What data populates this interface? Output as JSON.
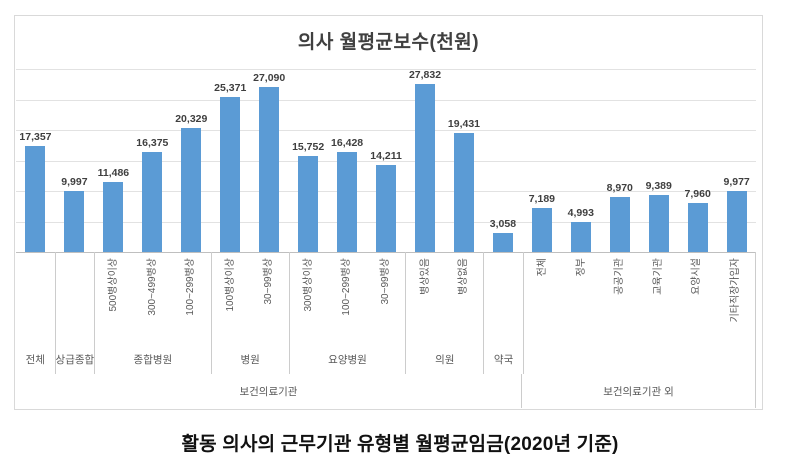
{
  "chart": {
    "title": "의사 월평균보수(천원)",
    "bar_color": "#5b9bd5",
    "gridline_color": "#e2e2e2",
    "axis_line_color": "#bfbfbf",
    "value_label_color": "#3f3f3f",
    "axis_label_color": "#595959"
  },
  "caption": "활동 의사의 근무기관 유형별 월평균임금(2020년 기준)",
  "chart_data": {
    "type": "bar",
    "title": "의사 월평균보수(천원)",
    "ylabel": "",
    "xlabel": "",
    "ylim": [
      0,
      30000
    ],
    "gridline_interval": 5000,
    "grid": true,
    "y_axis_labels_visible": false,
    "series_color": "#5b9bd5",
    "groups": [
      {
        "group": "전체",
        "supergroup": "보건의료기관",
        "items": [
          {
            "label": "",
            "value": 17357
          }
        ]
      },
      {
        "group": "상급종합",
        "supergroup": "보건의료기관",
        "items": [
          {
            "label": "",
            "value": 9997
          }
        ]
      },
      {
        "group": "종합병원",
        "supergroup": "보건의료기관",
        "items": [
          {
            "label": "500병상이상",
            "value": 11486
          },
          {
            "label": "300~499병상",
            "value": 16375
          },
          {
            "label": "100~299병상",
            "value": 20329
          }
        ]
      },
      {
        "group": "병원",
        "supergroup": "보건의료기관",
        "items": [
          {
            "label": "100병상이상",
            "value": 25371
          },
          {
            "label": "30~99병상",
            "value": 27090
          }
        ]
      },
      {
        "group": "요양병원",
        "supergroup": "보건의료기관",
        "items": [
          {
            "label": "300병상이상",
            "value": 15752
          },
          {
            "label": "100~299병상",
            "value": 16428
          },
          {
            "label": "30~99병상",
            "value": 14211
          }
        ]
      },
      {
        "group": "의원",
        "supergroup": "보건의료기관",
        "items": [
          {
            "label": "병상있음",
            "value": 27832
          },
          {
            "label": "병상없음",
            "value": 19431
          }
        ]
      },
      {
        "group": "약국",
        "supergroup": "보건의료기관",
        "items": [
          {
            "label": "",
            "value": 3058
          }
        ]
      },
      {
        "group": "",
        "supergroup": "보건의료기관 외",
        "items": [
          {
            "label": "전체",
            "value": 7189
          },
          {
            "label": "정부",
            "value": 4993
          },
          {
            "label": "공공기관",
            "value": 8970
          },
          {
            "label": "교육기관",
            "value": 9389
          },
          {
            "label": "요양시설",
            "value": 7960
          },
          {
            "label": "기타직장가입자",
            "value": 9977
          }
        ]
      }
    ],
    "supergroups": [
      {
        "label": "보건의료기관",
        "span": 13
      },
      {
        "label": "보건의료기관 외",
        "span": 6
      }
    ]
  }
}
